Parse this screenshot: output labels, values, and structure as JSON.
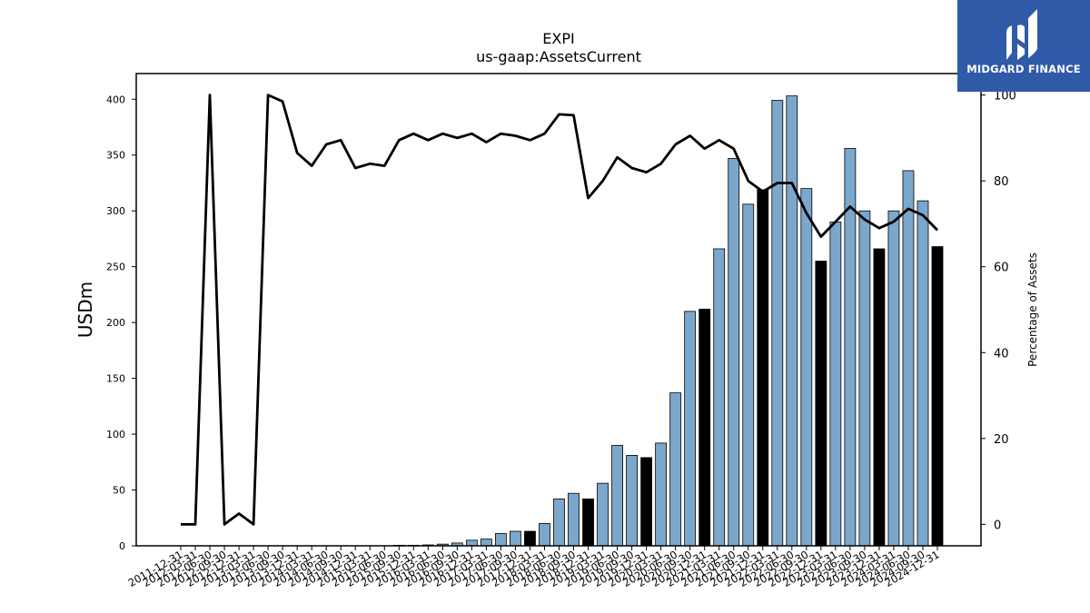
{
  "chart_data": {
    "type": "bar",
    "title": "EXPI",
    "subtitle": "us-gaap:AssetsCurrent",
    "ylabel": "USDm",
    "y2label": "Percentage of Assets",
    "ylim": [
      0,
      423
    ],
    "y2lim": [
      -5,
      105
    ],
    "yticks": [
      0,
      50,
      100,
      150,
      200,
      250,
      300,
      350,
      400
    ],
    "y2ticks": [
      0,
      20,
      40,
      60,
      80,
      100
    ],
    "grid": false,
    "categories": [
      "2011-12-31",
      "2012-03-31",
      "2012-06-30",
      "2012-09-30",
      "2012-12-31",
      "2013-03-31",
      "2013-06-30",
      "2013-09-30",
      "2013-12-31",
      "2014-03-31",
      "2014-06-30",
      "2014-09-30",
      "2014-12-31",
      "2015-03-31",
      "2015-06-30",
      "2015-09-30",
      "2015-12-31",
      "2016-03-31",
      "2016-06-30",
      "2016-09-30",
      "2016-12-31",
      "2017-03-31",
      "2017-06-30",
      "2017-09-30",
      "2017-12-31",
      "2018-03-31",
      "2018-06-30",
      "2018-09-30",
      "2018-12-31",
      "2019-03-31",
      "2019-06-30",
      "2019-09-30",
      "2019-12-31",
      "2020-03-31",
      "2020-06-30",
      "2020-09-30",
      "2020-12-31",
      "2021-03-31",
      "2021-06-30",
      "2021-09-30",
      "2021-12-31",
      "2022-03-31",
      "2022-06-30",
      "2022-09-30",
      "2022-12-31",
      "2023-03-31",
      "2023-06-30",
      "2023-09-30",
      "2023-12-31",
      "2024-03-31",
      "2024-06-30",
      "2024-09-30",
      "2024-12-31"
    ],
    "series": [
      {
        "kind": "bar",
        "values": [
          0,
          0,
          0,
          0,
          0,
          0,
          0,
          0,
          0,
          0,
          0,
          0,
          0,
          0,
          0,
          0.5,
          0.5,
          0.8,
          1.5,
          2.5,
          5,
          6,
          11,
          13,
          13,
          20,
          42,
          47,
          42,
          56,
          90,
          81,
          79,
          92,
          137,
          210,
          212,
          266,
          347,
          306,
          319,
          399,
          403,
          320,
          255,
          290,
          356,
          300,
          266,
          300,
          336,
          309,
          268
        ],
        "highlight_every": 4,
        "highlight_offset": 0,
        "color": "#7ba7cc",
        "highlight_color": "#000000"
      },
      {
        "kind": "line",
        "axis": "right",
        "values": [
          0,
          0,
          100,
          0,
          2.5,
          0,
          100,
          98.5,
          86.5,
          83.5,
          88.5,
          89.5,
          83,
          84,
          83.5,
          89.5,
          91,
          89.5,
          91,
          90,
          91,
          89,
          91,
          90.5,
          89.5,
          91,
          95.5,
          95.3,
          76,
          80,
          85.5,
          83,
          82,
          84,
          88.5,
          90.5,
          87.5,
          89.5,
          87.5,
          80,
          77.5,
          79.5,
          79.5,
          72.5,
          67,
          70.5,
          74,
          71,
          69,
          70.5,
          73.5,
          72,
          68.5
        ],
        "color": "#000000"
      }
    ]
  },
  "logo": {
    "text": "MIDGARD FINANCE",
    "background": "#2f5aa8"
  }
}
